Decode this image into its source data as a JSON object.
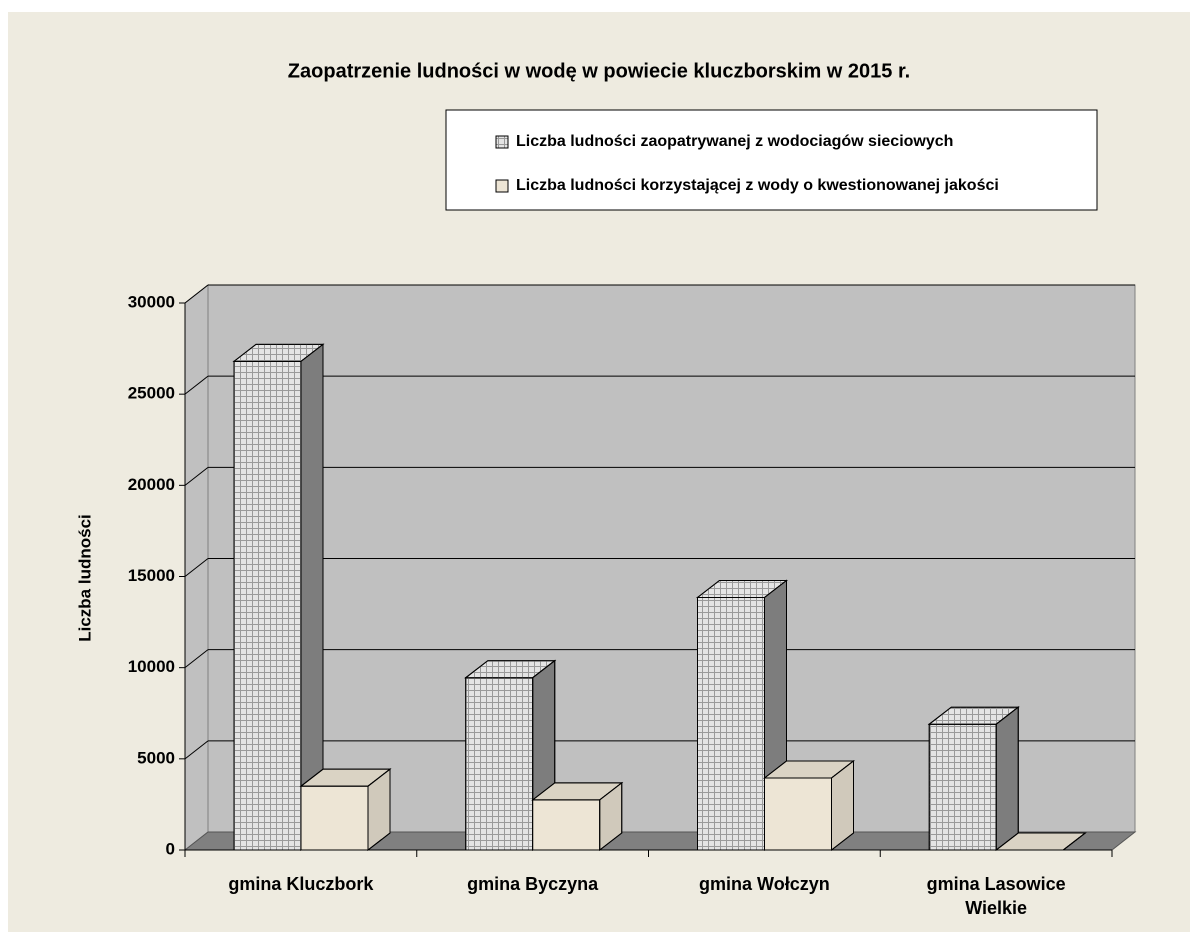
{
  "chart_data": {
    "type": "bar3d",
    "title": "Zaopatrzenie ludności w wodę w powiecie kluczborskim w 2015 r.",
    "y_label": "Liczba ludności",
    "categories": [
      "gmina Kluczbork",
      "gmina Byczyna",
      "gmina Wołczyn",
      "gmina Lasowice Wielkie"
    ],
    "series": [
      {
        "name": "Liczba ludności zaopatrywanej z wodociagów sieciowych",
        "color": "#e4e4e4",
        "values": [
          26800,
          9450,
          13850,
          6900
        ]
      },
      {
        "name": "Liczba ludności korzystającej z wody o kwestionowanej jakości",
        "color": "#ede5d5",
        "values": [
          3500,
          2750,
          3950,
          0
        ]
      }
    ],
    "ylim": [
      0,
      30000
    ],
    "yticks": [
      0,
      5000,
      10000,
      15000,
      20000,
      25000,
      30000
    ],
    "grid": true
  }
}
